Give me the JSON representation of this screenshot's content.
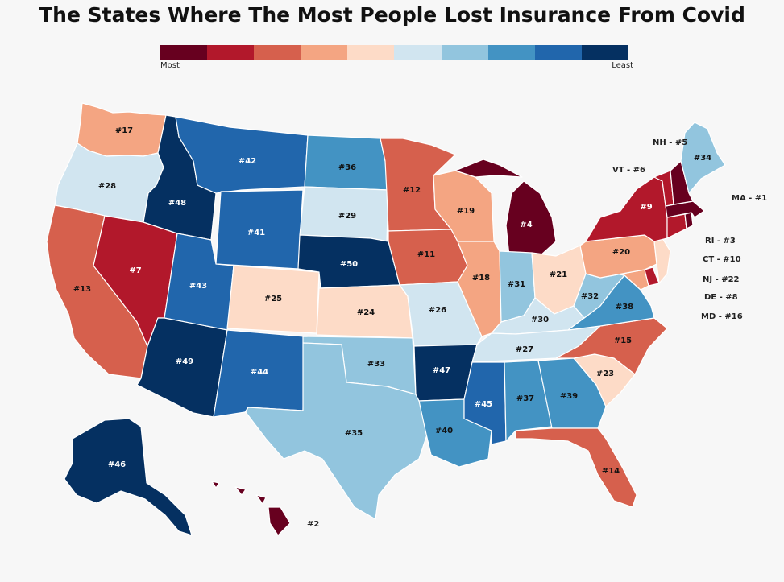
{
  "title": "The States Where The Most People Lost Insurance From Covid",
  "legend": {
    "most_label": "Most",
    "least_label": "Least",
    "colors": [
      "#67001f",
      "#b2182b",
      "#d6604d",
      "#f4a582",
      "#fddbc7",
      "#d1e5f0",
      "#92c5de",
      "#4393c3",
      "#2166ac",
      "#053061"
    ]
  },
  "states": [
    {
      "abbr": "WA",
      "rank": "#17"
    },
    {
      "abbr": "OR",
      "rank": "#28"
    },
    {
      "abbr": "CA",
      "rank": "#13"
    },
    {
      "abbr": "NV",
      "rank": "#7"
    },
    {
      "abbr": "ID",
      "rank": "#48"
    },
    {
      "abbr": "MT",
      "rank": "#42"
    },
    {
      "abbr": "WY",
      "rank": "#41"
    },
    {
      "abbr": "UT",
      "rank": "#43"
    },
    {
      "abbr": "AZ",
      "rank": "#49"
    },
    {
      "abbr": "CO",
      "rank": "#25"
    },
    {
      "abbr": "NM",
      "rank": "#44"
    },
    {
      "abbr": "ND",
      "rank": "#36"
    },
    {
      "abbr": "SD",
      "rank": "#29"
    },
    {
      "abbr": "NE",
      "rank": "#50"
    },
    {
      "abbr": "KS",
      "rank": "#24"
    },
    {
      "abbr": "OK",
      "rank": "#33"
    },
    {
      "abbr": "TX",
      "rank": "#35"
    },
    {
      "abbr": "MN",
      "rank": "#12"
    },
    {
      "abbr": "IA",
      "rank": "#11"
    },
    {
      "abbr": "MO",
      "rank": "#26"
    },
    {
      "abbr": "AR",
      "rank": "#47"
    },
    {
      "abbr": "LA",
      "rank": "#40"
    },
    {
      "abbr": "WI",
      "rank": "#19"
    },
    {
      "abbr": "IL",
      "rank": "#18"
    },
    {
      "abbr": "MI",
      "rank": "#4"
    },
    {
      "abbr": "IN",
      "rank": "#31"
    },
    {
      "abbr": "OH",
      "rank": "#21"
    },
    {
      "abbr": "KY",
      "rank": "#30"
    },
    {
      "abbr": "TN",
      "rank": "#27"
    },
    {
      "abbr": "MS",
      "rank": "#45"
    },
    {
      "abbr": "AL",
      "rank": "#37"
    },
    {
      "abbr": "GA",
      "rank": "#39"
    },
    {
      "abbr": "FL",
      "rank": "#14"
    },
    {
      "abbr": "SC",
      "rank": "#23"
    },
    {
      "abbr": "NC",
      "rank": "#15"
    },
    {
      "abbr": "VA",
      "rank": "#38"
    },
    {
      "abbr": "WV",
      "rank": "#32"
    },
    {
      "abbr": "PA",
      "rank": "#20"
    },
    {
      "abbr": "NY",
      "rank": "#9"
    },
    {
      "abbr": "ME",
      "rank": "#34"
    },
    {
      "abbr": "AK",
      "rank": "#46"
    },
    {
      "abbr": "HI",
      "rank": "#2"
    },
    {
      "abbr": "VT",
      "rank": "#6"
    },
    {
      "abbr": "NH",
      "rank": "#5"
    },
    {
      "abbr": "MA",
      "rank": "#1"
    },
    {
      "abbr": "RI",
      "rank": "#3"
    },
    {
      "abbr": "CT",
      "rank": "#10"
    },
    {
      "abbr": "NJ",
      "rank": "#22"
    },
    {
      "abbr": "DE",
      "rank": "#8"
    },
    {
      "abbr": "MD",
      "rank": "#16"
    }
  ],
  "callouts": [
    {
      "abbr": "NH",
      "text": "NH - #5"
    },
    {
      "abbr": "VT",
      "text": "VT - #6"
    },
    {
      "abbr": "MA",
      "text": "MA - #1"
    },
    {
      "abbr": "RI",
      "text": "RI - #3"
    },
    {
      "abbr": "CT",
      "text": "CT - #10"
    },
    {
      "abbr": "NJ",
      "text": "NJ - #22"
    },
    {
      "abbr": "DE",
      "text": "DE - #8"
    },
    {
      "abbr": "MD",
      "text": "MD - #16"
    }
  ]
}
